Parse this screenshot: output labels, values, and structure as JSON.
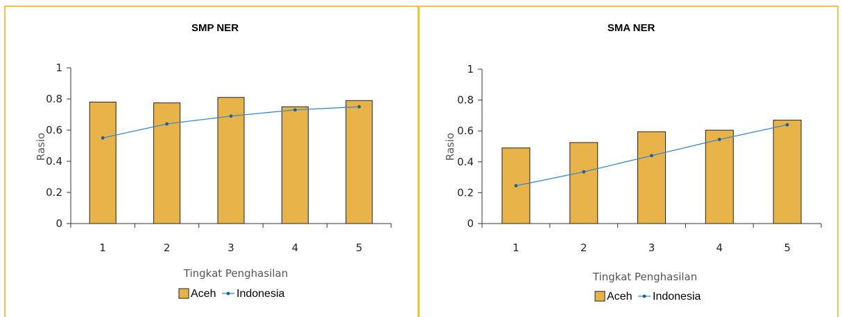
{
  "chart_data": [
    {
      "type": "bar",
      "title": "SMP NER",
      "xlabel": "Tingkat Penghasilan",
      "ylabel": "Rasio",
      "categories": [
        "1",
        "2",
        "3",
        "4",
        "5"
      ],
      "ylim": [
        0,
        1
      ],
      "yticks": [
        "0",
        "0.2",
        "0.4",
        "0.6",
        "0.8",
        "1"
      ],
      "series": [
        {
          "name": "Aceh",
          "kind": "bar",
          "color": "#e8b44a",
          "values": [
            0.78,
            0.775,
            0.81,
            0.75,
            0.79
          ]
        },
        {
          "name": "Indonesia",
          "kind": "line",
          "color": "#3a86c5",
          "values": [
            0.55,
            0.64,
            0.69,
            0.73,
            0.75
          ]
        }
      ],
      "legend": "bottom"
    },
    {
      "type": "bar",
      "title": "SMA NER",
      "xlabel": "Tingkat Penghasilan",
      "ylabel": "Rasio",
      "categories": [
        "1",
        "2",
        "3",
        "4",
        "5"
      ],
      "ylim": [
        0,
        1
      ],
      "yticks": [
        "0",
        "0.2",
        "0.4",
        "0.6",
        "0.8",
        "1"
      ],
      "series": [
        {
          "name": "Aceh",
          "kind": "bar",
          "color": "#e8b44a",
          "values": [
            0.49,
            0.525,
            0.595,
            0.605,
            0.67
          ]
        },
        {
          "name": "Indonesia",
          "kind": "line",
          "color": "#3a86c5",
          "values": [
            0.245,
            0.335,
            0.44,
            0.545,
            0.64
          ]
        }
      ],
      "legend": "bottom"
    }
  ]
}
